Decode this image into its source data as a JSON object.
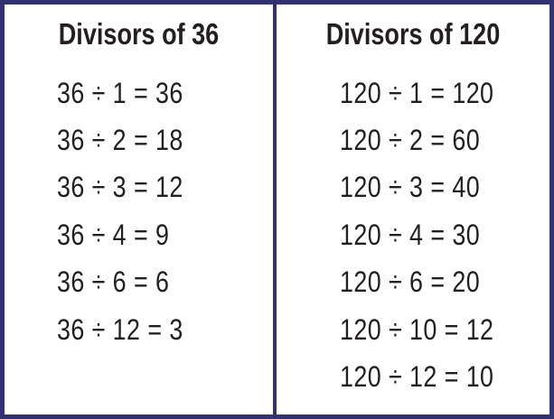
{
  "colors": {
    "border": "#333270",
    "ink": "#231f20",
    "background": "#ffffff"
  },
  "left_panel": {
    "title": "Divisors of 36",
    "dividend": 36,
    "divisors": [
      1,
      2,
      3,
      4,
      6,
      12
    ],
    "quotients": [
      36,
      18,
      12,
      9,
      6,
      3
    ],
    "equations": [
      "36 ÷ 1 = 36",
      "36 ÷ 2 = 18",
      "36 ÷ 3 = 12",
      "36 ÷ 4 = 9",
      "36 ÷ 6 = 6",
      "36 ÷ 12 = 3"
    ]
  },
  "right_panel": {
    "title": "Divisors of 120",
    "dividend": 120,
    "divisors": [
      1,
      2,
      3,
      4,
      6,
      10,
      12
    ],
    "quotients": [
      120,
      60,
      40,
      30,
      20,
      12,
      10
    ],
    "equations": [
      "120 ÷ 1 = 120",
      "120 ÷ 2 = 60",
      "120 ÷ 3 = 40",
      "120 ÷ 4 = 30",
      "120 ÷ 6 = 20",
      "120 ÷ 10 = 12",
      "120 ÷ 12 = 10"
    ]
  }
}
